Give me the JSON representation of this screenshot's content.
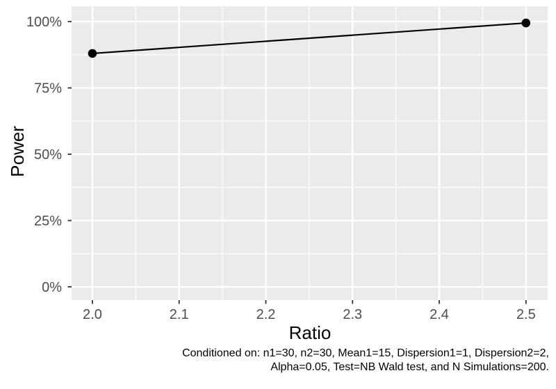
{
  "chart_data": {
    "type": "line",
    "title": "",
    "xlabel": "Ratio",
    "ylabel": "Power",
    "x": [
      2.0,
      2.5
    ],
    "series": [
      {
        "name": "Power",
        "values": [
          88,
          99.5
        ]
      }
    ],
    "x_ticks": {
      "values": [
        2.0,
        2.1,
        2.2,
        2.3,
        2.4,
        2.5
      ],
      "labels": [
        "2.0",
        "2.1",
        "2.2",
        "2.3",
        "2.4",
        "2.5"
      ]
    },
    "y_ticks": {
      "values": [
        0,
        25,
        50,
        75,
        100
      ],
      "labels": [
        "0%",
        "25%",
        "50%",
        "75%",
        "100%"
      ]
    },
    "x_minor": [
      2.05,
      2.15,
      2.25,
      2.35,
      2.45
    ],
    "y_minor": [
      12.5,
      37.5,
      62.5,
      87.5
    ],
    "xlim": [
      1.976,
      2.525
    ],
    "ylim": [
      -5.0,
      105.8
    ],
    "grid": "major+minor",
    "legend": false
  },
  "caption": {
    "line1": "Conditioned on: n1=30, n2=30, Mean1=15, Dispersion1=1, Dispersion2=2,",
    "line2": "Alpha=0.05, Test=NB Wald test, and N Simulations=200."
  },
  "colors": {
    "background": "#FFFFFF",
    "panel_bg": "#EBEBEB",
    "grid": "#FFFFFF",
    "axis_text": "#4D4D4D",
    "tick_mark": "#333333",
    "series": "#000000"
  }
}
